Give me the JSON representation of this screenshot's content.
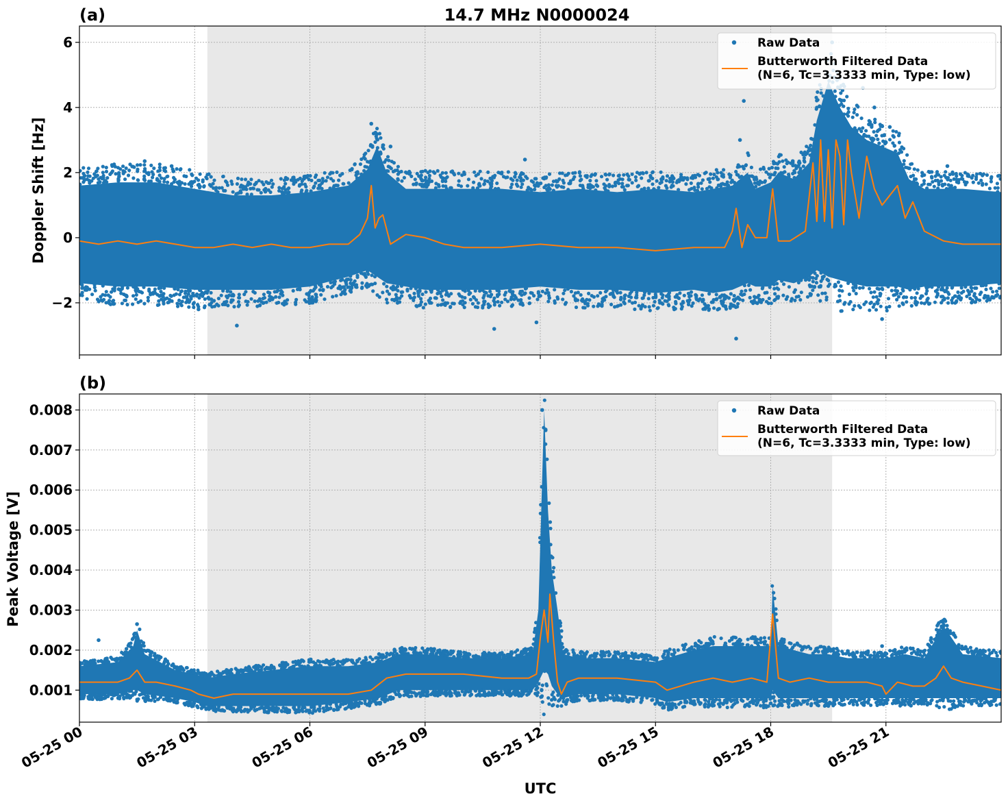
{
  "figure_title": "14.7 MHz N0000024",
  "xlabel": "UTC",
  "colors": {
    "raw": "#1f77b4",
    "filtered": "#ff7f0e",
    "shade": "#e8e8e8"
  },
  "chart_data": [
    {
      "type": "scatter",
      "panel_label": "(a)",
      "title": "14.7 MHz N0000024",
      "ylabel": "Doppler Shift [Hz]",
      "xlabel": "",
      "x_unit": "hours UTC on 05-25",
      "xlim": [
        0,
        24
      ],
      "ylim": [
        -3.6,
        6.5
      ],
      "yticks": [
        -2,
        0,
        2,
        4,
        6
      ],
      "ytick_labels": [
        "−2",
        "0",
        "2",
        "4",
        "6"
      ],
      "xticks": [
        0,
        3,
        6,
        9,
        12,
        15,
        18,
        21
      ],
      "xtick_labels": [
        "05-25 00",
        "05-25 03",
        "05-25 06",
        "05-25 09",
        "05-25 12",
        "05-25 15",
        "05-25 18",
        "05-25 21"
      ],
      "grid": true,
      "shaded_region": [
        3.33,
        19.6
      ],
      "legend": {
        "placement": "top-right",
        "entries": [
          "Raw Data",
          "Butterworth Filtered Data\n(N=6, Tc=3.3333 min, Type: low)"
        ]
      },
      "series": [
        {
          "name": "Raw Data",
          "kind": "band",
          "x": [
            0,
            1,
            2,
            3,
            4,
            5,
            6,
            7,
            7.5,
            7.75,
            8,
            8.5,
            9,
            10,
            11,
            12,
            13,
            14,
            15,
            16,
            16.5,
            17,
            17.4,
            17.6,
            18,
            18.2,
            18.6,
            19,
            19.2,
            19.5,
            19.8,
            20.1,
            20.5,
            20.9,
            21.3,
            21.6,
            22,
            23,
            24
          ],
          "upper": [
            1.6,
            1.7,
            1.7,
            1.5,
            1.3,
            1.3,
            1.4,
            1.6,
            2.1,
            2.8,
            2.0,
            1.5,
            1.5,
            1.5,
            1.5,
            1.4,
            1.5,
            1.4,
            1.5,
            1.4,
            1.5,
            1.6,
            2.0,
            1.5,
            1.7,
            2.0,
            1.8,
            2.3,
            3.6,
            4.8,
            4.0,
            3.4,
            3.0,
            2.8,
            2.6,
            1.8,
            1.5,
            1.5,
            1.4
          ],
          "lower": [
            -1.4,
            -1.5,
            -1.5,
            -1.6,
            -1.6,
            -1.6,
            -1.5,
            -1.2,
            -1.0,
            -1.2,
            -1.4,
            -1.5,
            -1.6,
            -1.6,
            -1.6,
            -1.5,
            -1.6,
            -1.6,
            -1.7,
            -1.6,
            -1.7,
            -1.6,
            -1.4,
            -1.5,
            -1.5,
            -1.3,
            -1.4,
            -1.2,
            -1.0,
            -1.2,
            -1.3,
            -1.4,
            -1.5,
            -1.5,
            -1.5,
            -1.6,
            -1.5,
            -1.5,
            -1.4
          ],
          "outliers": [
            [
              1.7,
              2.35
            ],
            [
              2.4,
              2.2
            ],
            [
              3.1,
              -2.2
            ],
            [
              4.1,
              -2.7
            ],
            [
              7.6,
              3.5
            ],
            [
              8.1,
              2.8
            ],
            [
              10.8,
              -2.8
            ],
            [
              11.6,
              2.4
            ],
            [
              11.9,
              -2.6
            ],
            [
              17.1,
              -3.1
            ],
            [
              17.3,
              4.2
            ],
            [
              17.2,
              3.0
            ],
            [
              19.6,
              6.0
            ],
            [
              20.4,
              4.6
            ],
            [
              20.7,
              4.0
            ],
            [
              21.1,
              3.4
            ],
            [
              20.9,
              -2.5
            ],
            [
              22.6,
              2.2
            ]
          ]
        },
        {
          "name": "Butterworth Filtered Data\n(N=6, Tc=3.3333 min, Type: low)",
          "x": [
            0,
            0.5,
            1,
            1.5,
            2,
            2.5,
            3,
            3.5,
            4,
            4.5,
            5,
            5.5,
            6,
            6.5,
            7,
            7.3,
            7.5,
            7.6,
            7.7,
            7.8,
            7.9,
            8.1,
            8.5,
            9,
            9.5,
            10,
            11,
            12,
            13,
            14,
            15,
            16,
            16.8,
            17,
            17.1,
            17.25,
            17.4,
            17.6,
            17.9,
            18.05,
            18.2,
            18.5,
            18.9,
            19.1,
            19.2,
            19.3,
            19.4,
            19.5,
            19.6,
            19.7,
            19.8,
            19.9,
            20.0,
            20.1,
            20.3,
            20.5,
            20.7,
            20.9,
            21.1,
            21.3,
            21.5,
            21.7,
            22,
            22.5,
            23,
            23.5,
            24
          ],
          "y": [
            -0.1,
            -0.2,
            -0.1,
            -0.2,
            -0.1,
            -0.2,
            -0.3,
            -0.3,
            -0.2,
            -0.3,
            -0.2,
            -0.3,
            -0.3,
            -0.2,
            -0.2,
            0.1,
            0.6,
            1.6,
            0.3,
            0.6,
            0.7,
            -0.2,
            0.1,
            0.0,
            -0.2,
            -0.3,
            -0.3,
            -0.2,
            -0.3,
            -0.3,
            -0.4,
            -0.3,
            -0.3,
            0.2,
            0.9,
            -0.3,
            0.4,
            0.0,
            0.0,
            1.5,
            -0.1,
            -0.1,
            0.2,
            2.3,
            0.5,
            3.0,
            0.5,
            2.7,
            0.3,
            3.0,
            2.5,
            0.4,
            3.0,
            2.0,
            0.6,
            2.5,
            1.5,
            1.0,
            1.3,
            1.6,
            0.6,
            1.1,
            0.2,
            -0.1,
            -0.2,
            -0.2,
            -0.2
          ]
        }
      ]
    },
    {
      "type": "scatter",
      "panel_label": "(b)",
      "ylabel": "Peak Voltage [V]",
      "xlabel": "UTC",
      "x_unit": "hours UTC on 05-25",
      "xlim": [
        0,
        24
      ],
      "ylim": [
        0.0002,
        0.0084
      ],
      "yticks": [
        0.001,
        0.002,
        0.003,
        0.004,
        0.005,
        0.006,
        0.007,
        0.008
      ],
      "ytick_labels": [
        "0.001",
        "0.002",
        "0.003",
        "0.004",
        "0.005",
        "0.006",
        "0.007",
        "0.008"
      ],
      "xticks": [
        0,
        3,
        6,
        9,
        12,
        15,
        18,
        21
      ],
      "xtick_labels": [
        "05-25 00",
        "05-25 03",
        "05-25 06",
        "05-25 09",
        "05-25 12",
        "05-25 15",
        "05-25 18",
        "05-25 21"
      ],
      "grid": true,
      "shaded_region": [
        3.33,
        19.6
      ],
      "legend": {
        "placement": "top-right",
        "entries": [
          "Raw Data",
          "Butterworth Filtered Data\n(N=6, Tc=3.3333 min, Type: low)"
        ]
      },
      "series": [
        {
          "name": "Raw Data",
          "kind": "band",
          "x": [
            0,
            1,
            1.4,
            1.5,
            1.7,
            2.5,
            3,
            3.3,
            4,
            5,
            6,
            7,
            7.8,
            8.3,
            9,
            10,
            11,
            11.8,
            11.95,
            12.1,
            12.2,
            12.3,
            12.45,
            12.6,
            13,
            14,
            15,
            15.3,
            16,
            16.5,
            17,
            17.5,
            18,
            18.05,
            18.2,
            19,
            19.5,
            20,
            21,
            21.5,
            22,
            22.5,
            23,
            24
          ],
          "upper": [
            0.0016,
            0.0017,
            0.0021,
            0.0025,
            0.0019,
            0.0015,
            0.0014,
            0.0013,
            0.0014,
            0.0015,
            0.0016,
            0.0016,
            0.0017,
            0.0019,
            0.0019,
            0.0018,
            0.0018,
            0.0019,
            0.003,
            0.008,
            0.0055,
            0.004,
            0.003,
            0.0019,
            0.0018,
            0.0018,
            0.0017,
            0.0018,
            0.002,
            0.0021,
            0.0021,
            0.0021,
            0.0021,
            0.0036,
            0.0021,
            0.0019,
            0.0019,
            0.0018,
            0.0018,
            0.0019,
            0.0018,
            0.0026,
            0.0019,
            0.0018
          ],
          "lower": [
            0.0009,
            0.0009,
            0.001,
            0.001,
            0.0009,
            0.0008,
            0.0007,
            0.0006,
            0.0006,
            0.0006,
            0.0006,
            0.0007,
            0.0008,
            0.001,
            0.001,
            0.001,
            0.001,
            0.001,
            0.0012,
            0.0015,
            0.0014,
            0.0011,
            0.0009,
            0.0008,
            0.0009,
            0.0009,
            0.0008,
            0.0007,
            0.0008,
            0.0008,
            0.0008,
            0.0008,
            0.0008,
            0.001,
            0.0008,
            0.0008,
            0.0008,
            0.0008,
            0.0008,
            0.0008,
            0.0008,
            0.0008,
            0.0008,
            0.0008
          ],
          "outliers": [
            [
              0.5,
              0.00225
            ],
            [
              1.5,
              0.00265
            ],
            [
              7.8,
              0.0019
            ],
            [
              12.05,
              0.008
            ],
            [
              20.9,
              0.0021
            ],
            [
              22.5,
              0.0026
            ]
          ]
        },
        {
          "name": "Butterworth Filtered Data\n(N=6, Tc=3.3333 min, Type: low)",
          "x": [
            0,
            0.5,
            1,
            1.3,
            1.5,
            1.7,
            2,
            2.5,
            2.9,
            3.1,
            3.5,
            4,
            5,
            6,
            7,
            7.6,
            8,
            8.5,
            9,
            10,
            11,
            11.7,
            11.9,
            12.0,
            12.1,
            12.2,
            12.25,
            12.35,
            12.45,
            12.55,
            12.7,
            13,
            14,
            15,
            15.3,
            16,
            16.5,
            17,
            17.5,
            17.9,
            18.05,
            18.2,
            18.5,
            19,
            19.5,
            20,
            20.5,
            20.9,
            21,
            21.3,
            21.7,
            22,
            22.3,
            22.5,
            22.7,
            23,
            23.5,
            24
          ],
          "y": [
            0.0012,
            0.0012,
            0.0012,
            0.0013,
            0.0015,
            0.0012,
            0.0012,
            0.0011,
            0.001,
            0.0009,
            0.0008,
            0.0009,
            0.0009,
            0.0009,
            0.0009,
            0.001,
            0.0013,
            0.0014,
            0.0014,
            0.0014,
            0.0013,
            0.0013,
            0.0014,
            0.0023,
            0.003,
            0.0022,
            0.0034,
            0.0022,
            0.0012,
            0.0009,
            0.0012,
            0.0013,
            0.0013,
            0.0012,
            0.001,
            0.0012,
            0.0013,
            0.0012,
            0.0013,
            0.0012,
            0.0029,
            0.0013,
            0.0012,
            0.0013,
            0.0012,
            0.0012,
            0.0012,
            0.0011,
            0.0009,
            0.0012,
            0.0011,
            0.0011,
            0.0013,
            0.0016,
            0.0013,
            0.0012,
            0.0011,
            0.001
          ]
        }
      ]
    }
  ]
}
